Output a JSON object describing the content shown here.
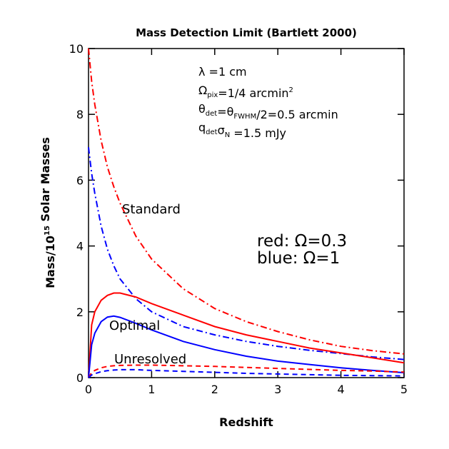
{
  "chart_data": {
    "type": "line",
    "title": "Mass Detection Limit (Bartlett 2000)",
    "xlabel": "Redshift",
    "ylabel": [
      {
        "text": "Mass/10"
      },
      {
        "sup": "15"
      },
      {
        "text": " Solar Masses"
      }
    ],
    "x": [
      0,
      0.05,
      0.1,
      0.2,
      0.3,
      0.4,
      0.5,
      0.75,
      1,
      1.5,
      2,
      2.5,
      3,
      3.5,
      4,
      4.5,
      5
    ],
    "series": [
      {
        "color": "#ff0000",
        "dash": "dashdot",
        "values": [
          10,
          9.0,
          8.3,
          7.2,
          6.4,
          5.8,
          5.3,
          4.3,
          3.6,
          2.7,
          2.1,
          1.7,
          1.4,
          1.15,
          0.95,
          0.82,
          0.72
        ]
      },
      {
        "color": "#0000ff",
        "dash": "dashdot",
        "values": [
          7.0,
          6.2,
          5.6,
          4.6,
          3.9,
          3.4,
          3.0,
          2.4,
          2.0,
          1.55,
          1.3,
          1.1,
          0.95,
          0.83,
          0.73,
          0.63,
          0.55
        ]
      },
      {
        "color": "#ff0000",
        "dash": "solid",
        "values": [
          0,
          1.6,
          2.0,
          2.35,
          2.5,
          2.57,
          2.57,
          2.45,
          2.25,
          1.9,
          1.55,
          1.3,
          1.1,
          0.9,
          0.75,
          0.6,
          0.45
        ]
      },
      {
        "color": "#0000ff",
        "dash": "solid",
        "values": [
          0,
          1.0,
          1.35,
          1.7,
          1.84,
          1.87,
          1.83,
          1.65,
          1.45,
          1.1,
          0.85,
          0.65,
          0.5,
          0.4,
          0.3,
          0.22,
          0.15
        ]
      },
      {
        "color": "#ff0000",
        "dash": "dashed",
        "values": [
          0,
          0.15,
          0.22,
          0.3,
          0.34,
          0.36,
          0.37,
          0.38,
          0.38,
          0.36,
          0.34,
          0.31,
          0.28,
          0.25,
          0.22,
          0.2,
          0.17
        ]
      },
      {
        "color": "#0000ff",
        "dash": "dashed",
        "values": [
          0,
          0.08,
          0.12,
          0.18,
          0.21,
          0.23,
          0.24,
          0.24,
          0.22,
          0.19,
          0.16,
          0.13,
          0.11,
          0.09,
          0.07,
          0.06,
          0.05
        ]
      }
    ],
    "xlim": [
      0,
      5
    ],
    "xticks": [
      0,
      1,
      2,
      3,
      4,
      5
    ],
    "ylim": [
      0,
      10
    ],
    "yticks": [
      0,
      2,
      4,
      6,
      8,
      10
    ],
    "parameters": [
      [
        {
          "text": "λ =1 cm"
        }
      ],
      [
        {
          "text": "Ω"
        },
        {
          "sub": "pix"
        },
        {
          "text": "=1/4 arcmin"
        },
        {
          "sup": "2"
        }
      ],
      [
        {
          "text": "θ"
        },
        {
          "sub": "det"
        },
        {
          "text": "=θ"
        },
        {
          "sub": "FWHM"
        },
        {
          "text": "/2=0.5 arcmin"
        }
      ],
      [
        {
          "text": "q"
        },
        {
          "sub": "det"
        },
        {
          "text": "σ"
        },
        {
          "sub": "N"
        },
        {
          "text": " =1.5 mJy"
        }
      ]
    ],
    "annotations": [
      {
        "text": "Standard",
        "color": "#555555"
      },
      {
        "text": "Optimal",
        "color": "#555555"
      },
      {
        "text": "Unresolved",
        "color": "#555555"
      },
      {
        "text": "red:  Ω=0.3",
        "color": "#ff0000"
      },
      {
        "text": "blue: Ω=1",
        "color": "#0000ff"
      }
    ]
  }
}
